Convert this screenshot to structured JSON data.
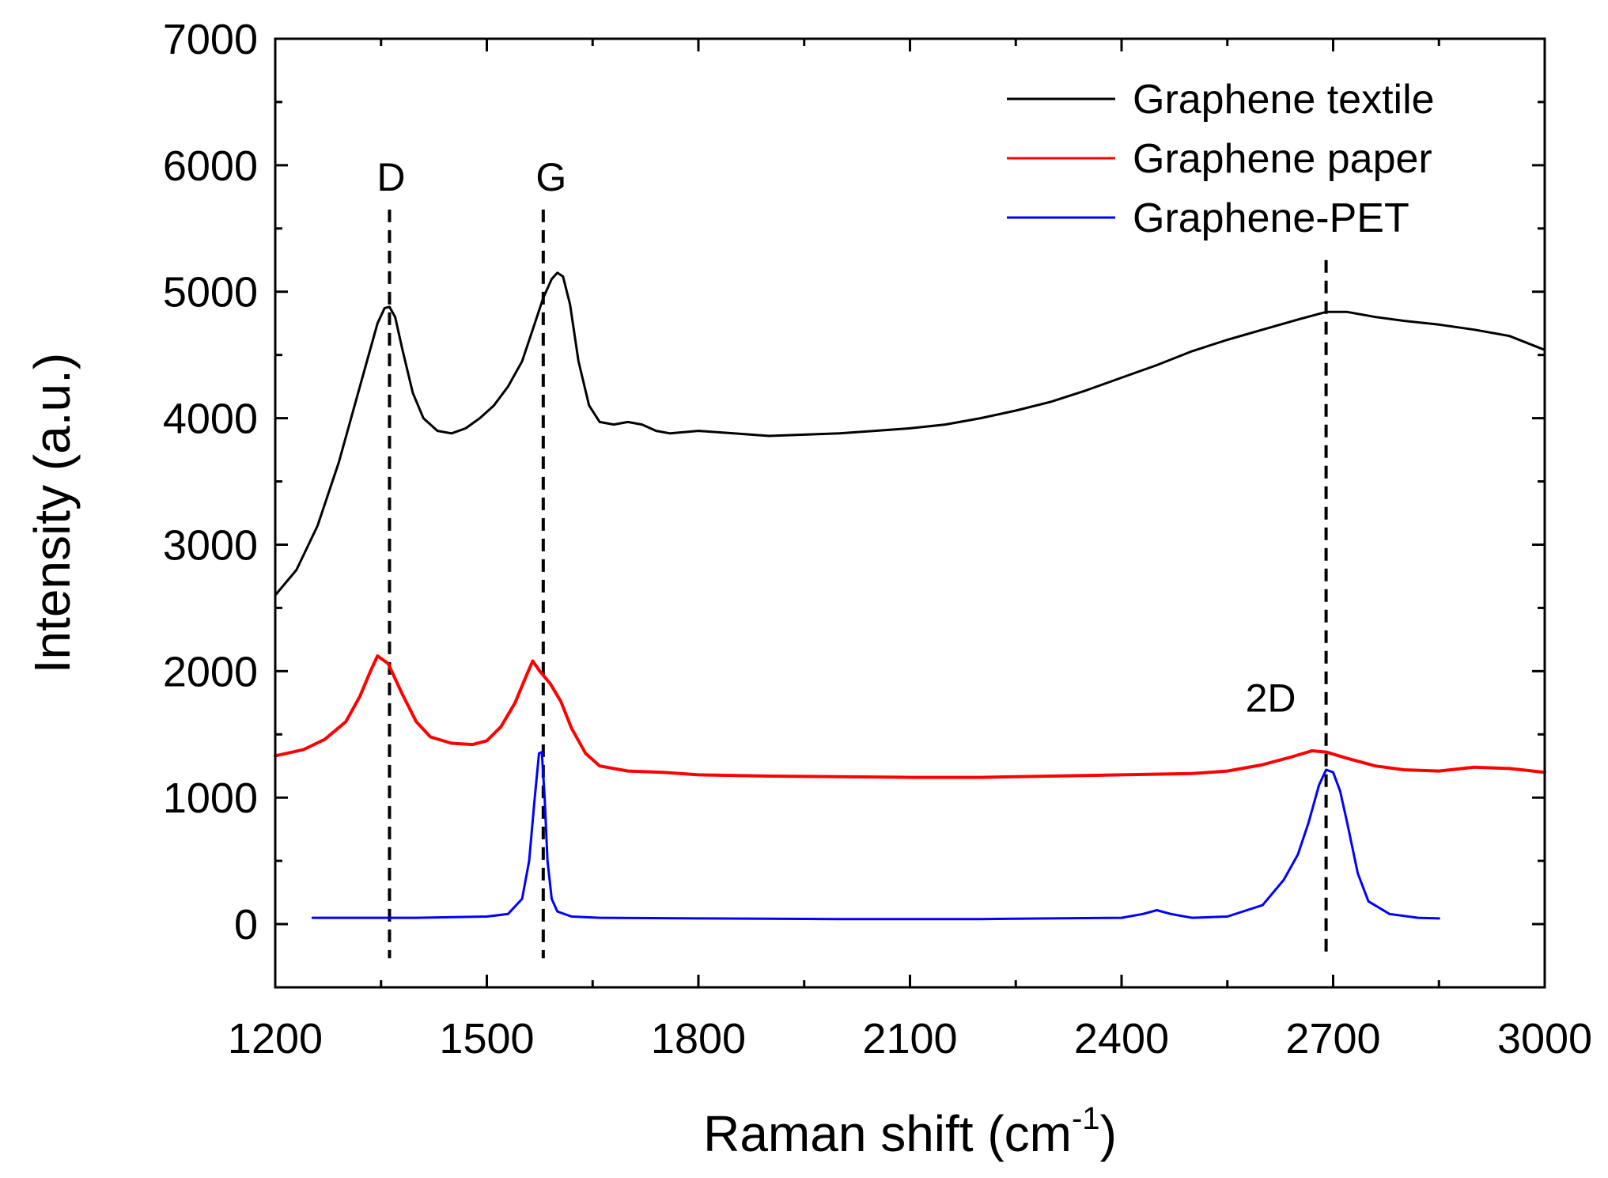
{
  "chart_data": {
    "type": "line",
    "xlabel_main": "Raman shift (cm",
    "xlabel_sup": "-1",
    "xlabel_close": ")",
    "ylabel": "Intensity (a.u.)",
    "xlim": [
      1200,
      3000
    ],
    "ylim": [
      -500,
      7000
    ],
    "xticks": [
      1200,
      1500,
      1800,
      2100,
      2400,
      2700,
      3000
    ],
    "yticks": [
      0,
      1000,
      2000,
      3000,
      4000,
      5000,
      6000,
      7000
    ],
    "xtick_labels": [
      "1200",
      "1500",
      "1800",
      "2100",
      "2400",
      "2700",
      "3000"
    ],
    "ytick_labels": [
      "0",
      "1000",
      "2000",
      "3000",
      "4000",
      "5000",
      "6000",
      "7000"
    ],
    "legend_position": "top-right",
    "series": [
      {
        "name": "Graphene textile",
        "color": "#000000",
        "x": [
          1200,
          1230,
          1260,
          1290,
          1310,
          1330,
          1345,
          1355,
          1362,
          1370,
          1380,
          1395,
          1410,
          1430,
          1450,
          1470,
          1490,
          1510,
          1530,
          1550,
          1565,
          1580,
          1592,
          1600,
          1608,
          1618,
          1630,
          1645,
          1660,
          1680,
          1700,
          1720,
          1740,
          1760,
          1800,
          1850,
          1900,
          1950,
          2000,
          2050,
          2100,
          2150,
          2200,
          2250,
          2300,
          2350,
          2400,
          2450,
          2500,
          2550,
          2600,
          2650,
          2690,
          2720,
          2760,
          2800,
          2850,
          2900,
          2950,
          3000
        ],
        "y": [
          2600,
          2800,
          3150,
          3650,
          4050,
          4450,
          4750,
          4870,
          4880,
          4800,
          4550,
          4200,
          4000,
          3900,
          3880,
          3920,
          4000,
          4100,
          4250,
          4450,
          4700,
          4950,
          5100,
          5150,
          5120,
          4900,
          4450,
          4100,
          3970,
          3950,
          3970,
          3950,
          3900,
          3880,
          3900,
          3880,
          3860,
          3870,
          3880,
          3900,
          3920,
          3950,
          4000,
          4060,
          4130,
          4220,
          4320,
          4420,
          4530,
          4620,
          4700,
          4780,
          4840,
          4840,
          4800,
          4770,
          4740,
          4700,
          4650,
          4540
        ]
      },
      {
        "name": "Graphene paper",
        "color": "#ff0000",
        "x": [
          1200,
          1240,
          1270,
          1300,
          1320,
          1335,
          1345,
          1360,
          1380,
          1400,
          1420,
          1450,
          1480,
          1500,
          1520,
          1540,
          1555,
          1565,
          1575,
          1590,
          1605,
          1620,
          1640,
          1660,
          1700,
          1750,
          1800,
          1900,
          2000,
          2100,
          2200,
          2300,
          2400,
          2500,
          2550,
          2600,
          2640,
          2670,
          2690,
          2720,
          2760,
          2800,
          2850,
          2900,
          2950,
          3000
        ],
        "y": [
          1330,
          1380,
          1460,
          1600,
          1800,
          2000,
          2120,
          2060,
          1820,
          1600,
          1480,
          1430,
          1420,
          1450,
          1560,
          1750,
          1950,
          2080,
          2000,
          1900,
          1760,
          1550,
          1350,
          1250,
          1210,
          1200,
          1180,
          1170,
          1165,
          1160,
          1160,
          1170,
          1180,
          1190,
          1210,
          1260,
          1320,
          1370,
          1360,
          1310,
          1250,
          1220,
          1210,
          1240,
          1230,
          1200
        ]
      },
      {
        "name": "Graphene-PET",
        "color": "#0000ff",
        "x": [
          1253,
          1300,
          1400,
          1500,
          1530,
          1550,
          1560,
          1568,
          1574,
          1578,
          1582,
          1586,
          1592,
          1600,
          1620,
          1660,
          1800,
          2000,
          2200,
          2400,
          2430,
          2450,
          2470,
          2500,
          2550,
          2600,
          2630,
          2650,
          2665,
          2680,
          2690,
          2700,
          2710,
          2720,
          2735,
          2750,
          2780,
          2820,
          2850
        ],
        "y": [
          50,
          50,
          50,
          60,
          80,
          200,
          500,
          1000,
          1350,
          1360,
          1000,
          500,
          200,
          100,
          60,
          50,
          45,
          40,
          40,
          50,
          80,
          110,
          80,
          50,
          60,
          150,
          350,
          550,
          800,
          1100,
          1220,
          1200,
          1050,
          800,
          400,
          180,
          80,
          50,
          45
        ]
      }
    ],
    "vlines": [
      {
        "x": 1362,
        "label": "D"
      },
      {
        "x": 1580,
        "label": "G"
      },
      {
        "x": 2690,
        "label": "2D"
      }
    ]
  }
}
